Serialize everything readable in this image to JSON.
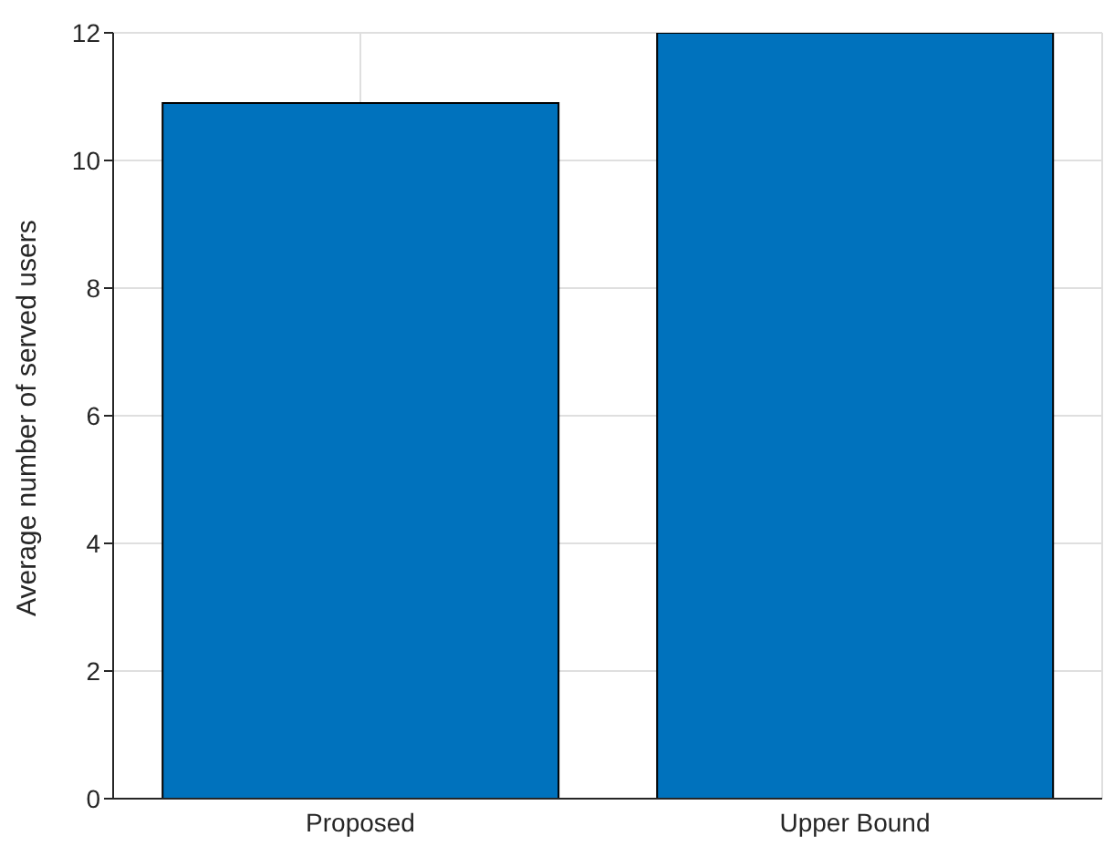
{
  "chart_data": {
    "type": "bar",
    "categories": [
      "Proposed",
      "Upper Bound"
    ],
    "values": [
      10.9,
      12
    ],
    "color": "#0072bd",
    "ylabel": "Average number of served users",
    "ylim": [
      0,
      12
    ],
    "yticks": [
      0,
      2,
      4,
      6,
      8,
      10,
      12
    ],
    "grid": true
  }
}
